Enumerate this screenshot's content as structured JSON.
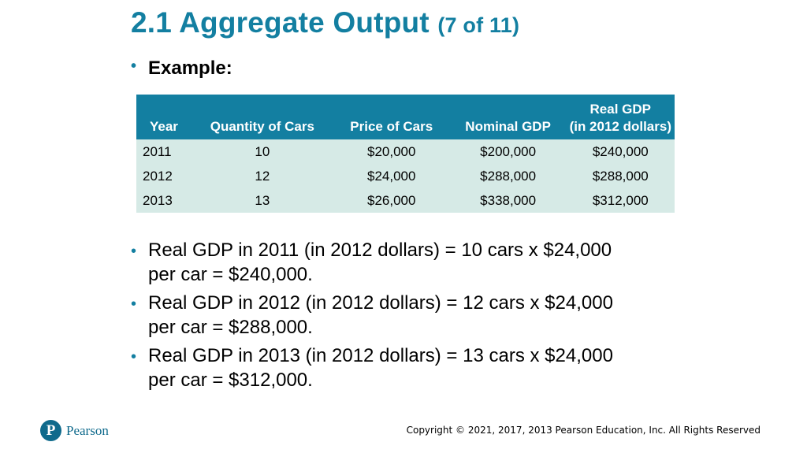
{
  "slide": {
    "title_main": "2.1 Aggregate Output",
    "title_sub": "(7 of 11)",
    "example_label": "Example:"
  },
  "table": {
    "headers": {
      "year": "Year",
      "quantity": "Quantity of Cars",
      "price": "Price of Cars",
      "nominal": "Nominal GDP",
      "real_line1": "Real GDP",
      "real_line2": "(in 2012 dollars)"
    },
    "rows": [
      {
        "year": "2011",
        "quantity": "10",
        "price": "$20,000",
        "nominal": "$200,000",
        "real": "$240,000"
      },
      {
        "year": "2012",
        "quantity": "12",
        "price": "$24,000",
        "nominal": "$288,000",
        "real": "$288,000"
      },
      {
        "year": "2013",
        "quantity": "13",
        "price": "$26,000",
        "nominal": "$338,000",
        "real": "$312,000"
      }
    ]
  },
  "equations": [
    {
      "line1": "Real GDP in 2011 (in 2012 dollars) = 10 cars x $24,000",
      "line2": "per car = $240,000."
    },
    {
      "line1": "Real GDP in 2012 (in 2012 dollars) = 12 cars x $24,000",
      "line2": "per car = $288,000."
    },
    {
      "line1": "Real GDP in 2013 (in 2012 dollars) = 13 cars x $24,000",
      "line2": "per car = $312,000."
    }
  ],
  "footer": {
    "logo_letter": "P",
    "logo_text": "Pearson",
    "copyright": "Copyright © 2021, 2017, 2013 Pearson Education, Inc. All Rights Reserved"
  },
  "colors": {
    "accent": "#137fa1",
    "table_body": "#d6eae6"
  }
}
